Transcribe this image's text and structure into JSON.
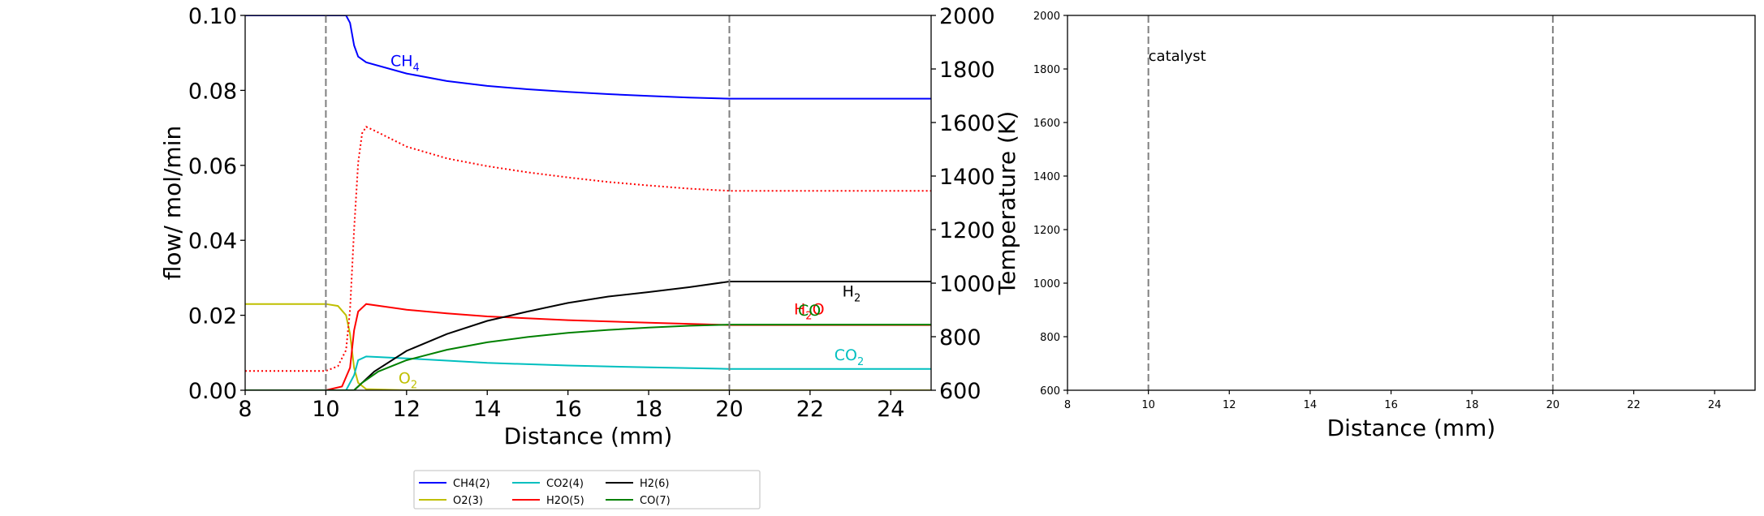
{
  "chart_data": [
    {
      "type": "line",
      "xlabel": "Distance (mm)",
      "ylabel": "flow/ mol/min",
      "y2label": "Temperature (K)",
      "xlim": [
        8,
        25
      ],
      "ylim": [
        0,
        0.1
      ],
      "y2lim": [
        600,
        2000
      ],
      "xticks": [
        "8",
        "10",
        "12",
        "14",
        "16",
        "18",
        "20",
        "22",
        "24"
      ],
      "yticks": [
        "0.00",
        "0.02",
        "0.04",
        "0.06",
        "0.08",
        "0.10"
      ],
      "y2ticks": [
        "600",
        "800",
        "1000",
        "1200",
        "1400",
        "1600",
        "1800",
        "2000"
      ],
      "vlines": [
        10,
        20
      ],
      "grid": false,
      "series": [
        {
          "name": "CH4(2)",
          "color": "#0000ff",
          "points": [
            [
              8,
              0.1
            ],
            [
              10,
              0.1
            ],
            [
              10.5,
              0.1
            ],
            [
              10.6,
              0.098
            ],
            [
              10.7,
              0.092
            ],
            [
              10.8,
              0.089
            ],
            [
              11,
              0.0875
            ],
            [
              12,
              0.0845
            ],
            [
              13,
              0.0825
            ],
            [
              14,
              0.0812
            ],
            [
              15,
              0.0803
            ],
            [
              16,
              0.0796
            ],
            [
              17,
              0.079
            ],
            [
              18,
              0.0785
            ],
            [
              19,
              0.0781
            ],
            [
              20,
              0.0778
            ],
            [
              21,
              0.0778
            ],
            [
              22,
              0.0778
            ],
            [
              23,
              0.0778
            ],
            [
              24,
              0.0778
            ],
            [
              25,
              0.0778
            ]
          ]
        },
        {
          "name": "O2(3)",
          "color": "#bfbf00",
          "points": [
            [
              8,
              0.023
            ],
            [
              9,
              0.023
            ],
            [
              10,
              0.023
            ],
            [
              10.3,
              0.0225
            ],
            [
              10.5,
              0.02
            ],
            [
              10.6,
              0.015
            ],
            [
              10.7,
              0.006
            ],
            [
              10.8,
              0.002
            ],
            [
              11,
              0.0003
            ],
            [
              12,
              0
            ],
            [
              25,
              0
            ]
          ]
        },
        {
          "name": "CO2(4)",
          "color": "#00bfbf",
          "points": [
            [
              8,
              0
            ],
            [
              10.5,
              0
            ],
            [
              10.7,
              0.004
            ],
            [
              10.8,
              0.008
            ],
            [
              11,
              0.009
            ],
            [
              12,
              0.0085
            ],
            [
              14,
              0.0073
            ],
            [
              16,
              0.0066
            ],
            [
              18,
              0.0061
            ],
            [
              20,
              0.0057
            ],
            [
              22,
              0.0057
            ],
            [
              25,
              0.0057
            ]
          ]
        },
        {
          "name": "H2O(5)",
          "color": "#ff0000",
          "points": [
            [
              8,
              0
            ],
            [
              10,
              0
            ],
            [
              10.4,
              0.001
            ],
            [
              10.6,
              0.006
            ],
            [
              10.7,
              0.016
            ],
            [
              10.8,
              0.021
            ],
            [
              11,
              0.023
            ],
            [
              12,
              0.0215
            ],
            [
              13,
              0.0205
            ],
            [
              14,
              0.0197
            ],
            [
              16,
              0.0187
            ],
            [
              18,
              0.018
            ],
            [
              20,
              0.0174
            ],
            [
              22,
              0.0174
            ],
            [
              25,
              0.0174
            ]
          ]
        },
        {
          "name": "H2(6)",
          "color": "#000000",
          "points": [
            [
              8,
              0
            ],
            [
              10.7,
              0
            ],
            [
              10.9,
              0.002
            ],
            [
              11.2,
              0.005
            ],
            [
              12,
              0.0105
            ],
            [
              13,
              0.015
            ],
            [
              14,
              0.0185
            ],
            [
              15,
              0.021
            ],
            [
              16,
              0.0233
            ],
            [
              17,
              0.025
            ],
            [
              18,
              0.0262
            ],
            [
              19,
              0.0275
            ],
            [
              20,
              0.029
            ],
            [
              21,
              0.029
            ],
            [
              22,
              0.029
            ],
            [
              25,
              0.029
            ]
          ]
        },
        {
          "name": "CO(7)",
          "color": "#008000",
          "points": [
            [
              8,
              0
            ],
            [
              10.7,
              0
            ],
            [
              10.9,
              0.002
            ],
            [
              11.3,
              0.005
            ],
            [
              12,
              0.008
            ],
            [
              13,
              0.0108
            ],
            [
              14,
              0.0128
            ],
            [
              15,
              0.0142
            ],
            [
              16,
              0.0153
            ],
            [
              17,
              0.0161
            ],
            [
              18,
              0.0167
            ],
            [
              19,
              0.0172
            ],
            [
              20,
              0.0175
            ],
            [
              22,
              0.0175
            ],
            [
              25,
              0.0175
            ]
          ]
        }
      ],
      "temperature": {
        "color": "#ff0000",
        "style": "dotted",
        "points": [
          [
            8,
            672
          ],
          [
            9,
            672
          ],
          [
            10,
            672
          ],
          [
            10.3,
            690
          ],
          [
            10.5,
            750
          ],
          [
            10.6,
            900
          ],
          [
            10.7,
            1200
          ],
          [
            10.8,
            1450
          ],
          [
            10.9,
            1560
          ],
          [
            11,
            1584
          ],
          [
            11.2,
            1570
          ],
          [
            12,
            1510
          ],
          [
            13,
            1466
          ],
          [
            14,
            1437
          ],
          [
            15,
            1414
          ],
          [
            16,
            1395
          ],
          [
            17,
            1378
          ],
          [
            18,
            1365
          ],
          [
            19,
            1353
          ],
          [
            20,
            1345
          ],
          [
            22,
            1345
          ],
          [
            25,
            1345
          ]
        ]
      },
      "annotations": [
        {
          "label": "CH",
          "sub": "4",
          "x": 11.6,
          "y": 0.0865,
          "color": "#0000ff"
        },
        {
          "label": "H",
          "sub": "2",
          "x": 22.8,
          "y": 0.025,
          "color": "#000000"
        },
        {
          "label": "H",
          "sub": "2",
          "tail": "O",
          "x": 21.6,
          "y": 0.0202,
          "color": "#ff0000"
        },
        {
          "label": "CO",
          "x": 21.7,
          "y": 0.0199,
          "color": "#008000"
        },
        {
          "label": "CO",
          "sub": "2",
          "x": 22.6,
          "y": 0.008,
          "color": "#00bfbf"
        },
        {
          "label": "O",
          "sub": "2",
          "x": 11.8,
          "y": 0.0018,
          "color": "#bfbf00"
        }
      ],
      "legend": {
        "placement": "below",
        "entries": [
          {
            "label": "CH4(2)",
            "color": "#0000ff"
          },
          {
            "label": "O2(3)",
            "color": "#bfbf00"
          },
          {
            "label": "CO2(4)",
            "color": "#00bfbf"
          },
          {
            "label": "H2O(5)",
            "color": "#ff0000"
          },
          {
            "label": "H2(6)",
            "color": "#000000"
          },
          {
            "label": "CO(7)",
            "color": "#008000"
          }
        ]
      }
    },
    {
      "type": "line",
      "xlabel": "Distance (mm)",
      "xlim": [
        8,
        25
      ],
      "ylim": [
        600,
        2000
      ],
      "xticks": [
        "8",
        "10",
        "12",
        "14",
        "16",
        "18",
        "20",
        "22",
        "24"
      ],
      "yticks": [
        "600",
        "800",
        "1000",
        "1200",
        "1400",
        "1600",
        "1800",
        "2000"
      ],
      "vlines": [
        10,
        20
      ],
      "annotation": "catalyst",
      "annotation_x": 10,
      "annotation_y": 1830,
      "series": []
    }
  ]
}
